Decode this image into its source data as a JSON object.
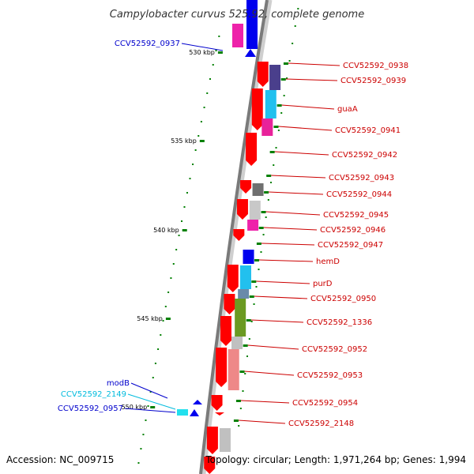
{
  "title": "Campylobacter curvus 525.92, complete genome",
  "accession": "Accession: NC_009715",
  "topology": "Topology: circular; Length: 1,971,264 bp; Genes: 1,994",
  "colors": {
    "forward_red": "#ff0000",
    "backbone": "#808080",
    "tick_green": "#008000",
    "label_red": "#cc0000",
    "label_blue": "#0000cc",
    "label_cyan": "#00bbdd"
  },
  "kbp_ticks": [
    "530 kbp",
    "535 kbp",
    "540 kbp",
    "545 kbp",
    "550 kbp"
  ],
  "genes_right": [
    "CCV52592_0938",
    "CCV52592_0939",
    "guaA",
    "CCV52592_0941",
    "CCV52592_0942",
    "CCV52592_0943",
    "CCV52592_0944",
    "CCV52592_0945",
    "CCV52592_0946",
    "CCV52592_0947",
    "hemD",
    "purD",
    "CCV52592_0950",
    "CCV52592_1336",
    "CCV52592_0952",
    "CCV52592_0953",
    "CCV52592_0954",
    "CCV52592_2148"
  ],
  "genes_left": [
    "CCV52592_0937",
    "modB",
    "CCV52592_2149",
    "CCV52592_0957"
  ]
}
